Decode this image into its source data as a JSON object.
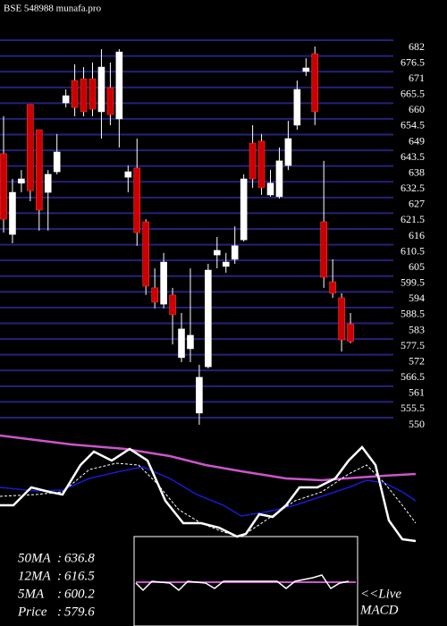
{
  "chart_data": {
    "type": "candlestick",
    "title": "BSE 548988 munafa.pro",
    "ylim": [
      550,
      682
    ],
    "yticks": [
      682,
      676.5,
      671,
      665.5,
      660,
      654.5,
      649,
      643.5,
      638,
      632.5,
      627,
      621.5,
      616,
      610.5,
      605,
      599.5,
      594,
      588.5,
      583,
      577.5,
      572,
      566.5,
      561,
      555.5,
      550
    ],
    "grid": true,
    "up_color": "#ffffff",
    "down_color": "#cc0000",
    "grid_color": "#23237a",
    "candles": [
      [
        642.3,
        655.4,
        614.7,
        619.4
      ],
      [
        614.1,
        633.5,
        611,
        628.8
      ],
      [
        632,
        636.6,
        628.8,
        633.5
      ],
      [
        659.5,
        659.5,
        625.7,
        629.4
      ],
      [
        650.7,
        650.7,
        615.4,
        622.6
      ],
      [
        628.8,
        636.6,
        615.4,
        635.1
      ],
      [
        636,
        649.2,
        635.1,
        642.9
      ],
      [
        660.1,
        664.8,
        658.5,
        662.6
      ],
      [
        667.9,
        673.6,
        655.4,
        658.5
      ],
      [
        668.5,
        672.6,
        655.4,
        657
      ],
      [
        668.5,
        674.2,
        655.4,
        657.9
      ],
      [
        657,
        678.9,
        647.6,
        672.6
      ],
      [
        665.4,
        674.2,
        652.3,
        656
      ],
      [
        654.5,
        678.9,
        644.5,
        677.9
      ],
      [
        634.1,
        638.2,
        628.8,
        636
      ],
      [
        637.3,
        647.6,
        610.1,
        614.7
      ],
      [
        618.5,
        619.4,
        592.9,
        596
      ],
      [
        595.4,
        602.2,
        588.2,
        590.4
      ],
      [
        589.7,
        607.6,
        588.2,
        604.4
      ],
      [
        592.9,
        595.4,
        575.6,
        586
      ],
      [
        571,
        586.6,
        569.4,
        581
      ],
      [
        574.1,
        602.2,
        569.4,
        578.8
      ],
      [
        551.6,
        568.5,
        547.5,
        564.1
      ],
      [
        567.8,
        603.8,
        567.2,
        601.6
      ],
      [
        606.9,
        613.2,
        602.2,
        608.5
      ],
      [
        602.9,
        607.6,
        600.7,
        604.4
      ],
      [
        605.4,
        616.9,
        603.8,
        610.1
      ],
      [
        612.2,
        635.1,
        611.6,
        633.5
      ],
      [
        646,
        652.3,
        630.4,
        633.5
      ],
      [
        646.7,
        649.2,
        627.9,
        630.4
      ],
      [
        627.9,
        636.6,
        627.3,
        632
      ],
      [
        627.3,
        644.5,
        626.6,
        639.8
      ],
      [
        638.2,
        653.8,
        636.6,
        647.6
      ],
      [
        652.3,
        667.9,
        650.7,
        664.8
      ],
      [
        671.1,
        675.7,
        669.5,
        672.3
      ],
      [
        677.3,
        679.8,
        652.3,
        657
      ],
      [
        618.5,
        639.8,
        595.4,
        599.1
      ],
      [
        597.5,
        605.4,
        591.9,
        593.5
      ],
      [
        591.9,
        593.5,
        573.1,
        577.2
      ],
      [
        582.8,
        586.6,
        576,
        576.6
      ]
    ],
    "indicators": [
      {
        "name": "50MA",
        "value": 636.8
      },
      {
        "name": "12MA",
        "value": 616.5
      },
      {
        "name": "5MA",
        "value": 600.2
      },
      {
        "name": "Price",
        "value": 579.6
      }
    ],
    "panel_label": [
      "<<Live",
      "MACD"
    ]
  }
}
